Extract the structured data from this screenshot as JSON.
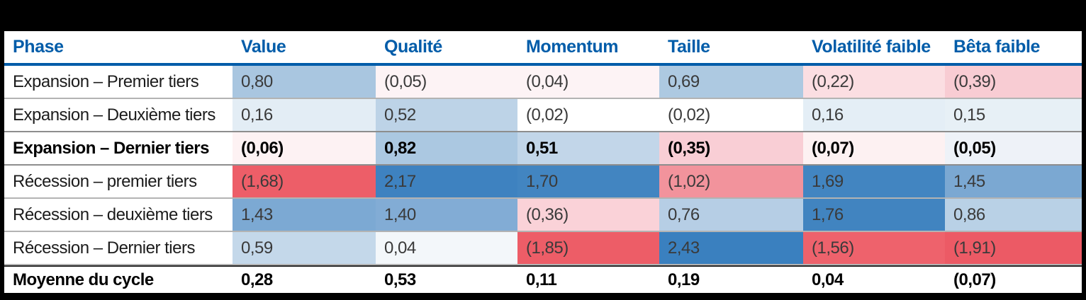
{
  "table": {
    "columns": [
      {
        "label": "Phase"
      },
      {
        "label": "Value"
      },
      {
        "label": "Qualité"
      },
      {
        "label": "Momentum"
      },
      {
        "label": "Taille"
      },
      {
        "label": "Volatilité faible"
      },
      {
        "label": "Bêta faible"
      }
    ],
    "rows": [
      {
        "label": "Expansion – Premier tiers",
        "cells": [
          {
            "text": "0,80",
            "bg": "#a9c6e0"
          },
          {
            "text": "(0,05)",
            "bg": "#fdf3f5"
          },
          {
            "text": "(0,04)",
            "bg": "#fdf3f5"
          },
          {
            "text": "0,69",
            "bg": "#adc9e1"
          },
          {
            "text": "(0,22)",
            "bg": "#fbdee2"
          },
          {
            "text": "(0,39)",
            "bg": "#f8ccd3"
          }
        ]
      },
      {
        "label": "Expansion – Deuxième tiers",
        "cells": [
          {
            "text": "0,16",
            "bg": "#e3edf5"
          },
          {
            "text": "0,52",
            "bg": "#bdd3e7"
          },
          {
            "text": "(0,02)",
            "bg": "#ffffff"
          },
          {
            "text": "(0,02)",
            "bg": "#ffffff"
          },
          {
            "text": "0,16",
            "bg": "#e4eef6"
          },
          {
            "text": "0,15",
            "bg": "#e7f0f6"
          }
        ]
      },
      {
        "label": "Expansion – Dernier tiers",
        "cells": [
          {
            "text": "(0,06)",
            "bg": "#fdf2f3"
          },
          {
            "text": "0,82",
            "bg": "#abc8e1"
          },
          {
            "text": "0,51",
            "bg": "#c2d6e9"
          },
          {
            "text": "(0,35)",
            "bg": "#f9ced5"
          },
          {
            "text": "(0,07)",
            "bg": "#fdf1f2"
          },
          {
            "text": "(0,05)",
            "bg": "#eef2f8"
          }
        ]
      },
      {
        "label": "Récession – premier tiers",
        "cells": [
          {
            "text": "(1,68)",
            "bg": "#ed5e68"
          },
          {
            "text": "2,17",
            "bg": "#3e82c0"
          },
          {
            "text": "1,70",
            "bg": "#4285c1"
          },
          {
            "text": "(1,02)",
            "bg": "#f2939c"
          },
          {
            "text": "1,69",
            "bg": "#4285c1"
          },
          {
            "text": "1,45",
            "bg": "#7ba8d2"
          }
        ]
      },
      {
        "label": "Récession – deuxième tiers",
        "cells": [
          {
            "text": "1,43",
            "bg": "#7ca9d3"
          },
          {
            "text": "1,40",
            "bg": "#82acd5"
          },
          {
            "text": "(0,36)",
            "bg": "#fad2d8"
          },
          {
            "text": "0,76",
            "bg": "#b6cee5"
          },
          {
            "text": "1,76",
            "bg": "#4184c0"
          },
          {
            "text": "0,86",
            "bg": "#b9d1e6"
          }
        ]
      },
      {
        "label": "Récession – Dernier tiers",
        "cells": [
          {
            "text": "0,59",
            "bg": "#c4d8ea"
          },
          {
            "text": "0,04",
            "bg": "#f3f7fa"
          },
          {
            "text": "(1,85)",
            "bg": "#ed5d67"
          },
          {
            "text": "2,43",
            "bg": "#3a80bf"
          },
          {
            "text": "(1,56)",
            "bg": "#ee626c"
          },
          {
            "text": "(1,91)",
            "bg": "#ec5a65"
          }
        ]
      },
      {
        "label": "Moyenne du cycle",
        "cells": [
          {
            "text": "0,28",
            "bg": "#ffffff"
          },
          {
            "text": "0,53",
            "bg": "#ffffff"
          },
          {
            "text": "0,11",
            "bg": "#ffffff"
          },
          {
            "text": "0,19",
            "bg": "#ffffff"
          },
          {
            "text": "0,04",
            "bg": "#ffffff"
          },
          {
            "text": "(0,07)",
            "bg": "#ffffff"
          }
        ]
      }
    ]
  },
  "chart_data": {
    "type": "heatmap",
    "title": "",
    "row_label_header": "Phase",
    "columns": [
      "Value",
      "Qualité",
      "Momentum",
      "Taille",
      "Volatilité faible",
      "Bêta faible"
    ],
    "rows": [
      "Expansion – Premier tiers",
      "Expansion – Deuxième tiers",
      "Expansion – Dernier tiers",
      "Récession – premier tiers",
      "Récession – deuxième tiers",
      "Récession – Dernier tiers",
      "Moyenne du cycle"
    ],
    "values": [
      [
        0.8,
        -0.05,
        -0.04,
        0.69,
        -0.22,
        -0.39
      ],
      [
        0.16,
        0.52,
        -0.02,
        -0.02,
        0.16,
        0.15
      ],
      [
        -0.06,
        0.82,
        0.51,
        -0.35,
        -0.07,
        -0.05
      ],
      [
        -1.68,
        2.17,
        1.7,
        -1.02,
        1.69,
        1.45
      ],
      [
        1.43,
        1.4,
        -0.36,
        0.76,
        1.76,
        0.86
      ],
      [
        0.59,
        0.04,
        -1.85,
        2.43,
        -1.56,
        -1.91
      ],
      [
        0.28,
        0.53,
        0.11,
        0.19,
        0.04,
        -0.07
      ]
    ],
    "value_format": "French decimal comma; negatives shown in parentheses",
    "notes": "Last data row (Moyenne du cycle) has no heatmap shading; rows 'Expansion – Dernier tiers' and 'Moyenne du cycle' are bold",
    "color_scale": {
      "strong_negative": "#ed5e68",
      "zero": "#ffffff",
      "strong_positive": "#3a80bf"
    },
    "accent_colors": {
      "header_text": "#005ca9",
      "header_rule": "#005ca9",
      "frame": "#000000"
    }
  }
}
